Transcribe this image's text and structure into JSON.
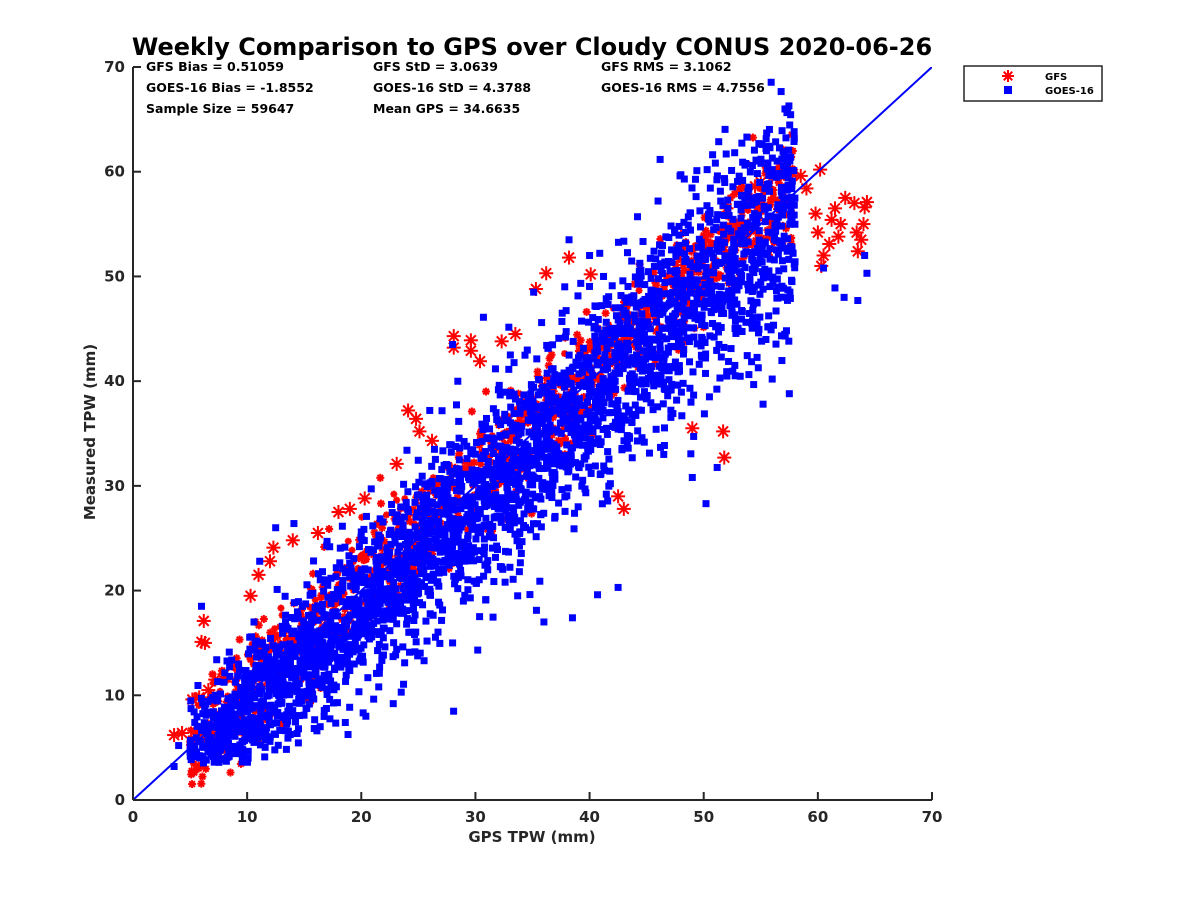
{
  "chart_data": {
    "type": "scatter",
    "title": "Weekly Comparison to GPS over Cloudy CONUS 2020-06-26",
    "xlabel": "GPS TPW (mm)",
    "ylabel": "Measured TPW (mm)",
    "xlim": [
      0,
      70
    ],
    "ylim": [
      0,
      70
    ],
    "xticks": [
      "0",
      "10",
      "20",
      "30",
      "40",
      "50",
      "60",
      "70"
    ],
    "yticks": [
      "0",
      "10",
      "20",
      "30",
      "40",
      "50",
      "60",
      "70"
    ],
    "grid": false,
    "legend_position": "outside-top-right",
    "reference_line": {
      "x": [
        0,
        70
      ],
      "y": [
        0,
        70
      ],
      "color": "#0000ff"
    },
    "stats": [
      [
        "GFS Bias = 0.51059",
        "GFS StD = 3.0639",
        "GFS RMS = 3.1062"
      ],
      [
        "GOES-16 Bias = -1.8552",
        "GOES-16 StD = 4.3788",
        "GOES-16 RMS = 4.7556"
      ],
      [
        "Sample Size = 59647",
        "Mean GPS = 34.6635",
        ""
      ]
    ],
    "series": [
      {
        "name": "GFS",
        "marker": "asterisk",
        "color": "#ff0000",
        "points": [
          [
            3.6,
            6.2
          ],
          [
            4.3,
            6.4
          ],
          [
            5.2,
            9.6
          ],
          [
            5.8,
            9.8
          ],
          [
            6.0,
            15.1
          ],
          [
            6.3,
            15.0
          ],
          [
            6.2,
            17.1
          ],
          [
            6.6,
            10.5
          ],
          [
            7.2,
            11.5
          ],
          [
            8.0,
            12.0
          ],
          [
            10.3,
            19.5
          ],
          [
            11.0,
            21.5
          ],
          [
            12.3,
            24.1
          ],
          [
            12.0,
            22.8
          ],
          [
            14.0,
            24.8
          ],
          [
            16.2,
            25.5
          ],
          [
            18.0,
            27.5
          ],
          [
            19.0,
            27.8
          ],
          [
            20.3,
            28.8
          ],
          [
            23.1,
            32.1
          ],
          [
            24.1,
            37.2
          ],
          [
            24.8,
            36.4
          ],
          [
            25.1,
            35.2
          ],
          [
            26.2,
            34.3
          ],
          [
            28.1,
            44.3
          ],
          [
            28.1,
            43.2
          ],
          [
            29.6,
            43.9
          ],
          [
            29.6,
            42.9
          ],
          [
            30.4,
            41.9
          ],
          [
            32.3,
            43.8
          ],
          [
            33.5,
            44.5
          ],
          [
            35.3,
            48.8
          ],
          [
            36.2,
            50.3
          ],
          [
            38.2,
            51.8
          ],
          [
            40.1,
            50.2
          ],
          [
            42.5,
            29.0
          ],
          [
            43.0,
            27.8
          ],
          [
            49.0,
            35.5
          ],
          [
            51.7,
            35.2
          ],
          [
            51.8,
            32.7
          ],
          [
            52.0,
            56.5
          ],
          [
            53.2,
            58.2
          ],
          [
            54.5,
            58.6
          ],
          [
            55.0,
            59.0
          ],
          [
            56.0,
            59.5
          ],
          [
            57.2,
            60.1
          ],
          [
            57.8,
            59.8
          ],
          [
            58.5,
            59.6
          ],
          [
            59.0,
            58.4
          ],
          [
            59.8,
            56.0
          ],
          [
            60.2,
            60.2
          ],
          [
            60.0,
            54.2
          ],
          [
            60.5,
            52.0
          ],
          [
            60.3,
            51.0
          ],
          [
            61.2,
            55.4
          ],
          [
            61.5,
            56.5
          ],
          [
            61.8,
            53.8
          ],
          [
            62.4,
            57.5
          ],
          [
            63.2,
            57.0
          ],
          [
            63.4,
            54.2
          ],
          [
            63.5,
            52.4
          ],
          [
            63.8,
            53.5
          ],
          [
            64.0,
            55.0
          ],
          [
            64.1,
            56.6
          ],
          [
            64.3,
            57.1
          ],
          [
            62.0,
            55.0
          ],
          [
            61.0,
            53.1
          ]
        ]
      },
      {
        "name": "GOES-16",
        "marker": "square",
        "color": "#0000ff",
        "points": [
          [
            3.6,
            3.2
          ],
          [
            4.0,
            5.2
          ],
          [
            5.0,
            4.6
          ],
          [
            6.0,
            18.5
          ],
          [
            7.0,
            4.6
          ],
          [
            10.6,
            17.0
          ],
          [
            11.1,
            22.8
          ],
          [
            12.5,
            26.0
          ],
          [
            14.1,
            26.4
          ],
          [
            17.0,
            24.7
          ],
          [
            20.0,
            25.6
          ],
          [
            24.0,
            33.4
          ],
          [
            26.0,
            37.2
          ],
          [
            28.0,
            43.5
          ],
          [
            30.7,
            46.1
          ],
          [
            35.1,
            48.5
          ],
          [
            38.2,
            53.5
          ],
          [
            40.0,
            52.0
          ],
          [
            44.2,
            55.7
          ],
          [
            46.0,
            57.2
          ],
          [
            48.3,
            59.3
          ],
          [
            49.4,
            60.1
          ],
          [
            50.3,
            60.2
          ],
          [
            51.2,
            59.6
          ],
          [
            55.5,
            62.0
          ],
          [
            56.0,
            60.2
          ],
          [
            57.5,
            57.5
          ],
          [
            58.0,
            51.4
          ],
          [
            60.5,
            50.8
          ],
          [
            61.5,
            48.9
          ],
          [
            62.3,
            48.0
          ],
          [
            63.5,
            47.7
          ],
          [
            64.1,
            52.0
          ],
          [
            64.3,
            50.3
          ],
          [
            39.0,
            28.0
          ],
          [
            36.0,
            17.0
          ],
          [
            38.5,
            17.4
          ],
          [
            40.7,
            19.6
          ],
          [
            42.5,
            20.3
          ],
          [
            32.6,
            20.8
          ],
          [
            33.7,
            19.5
          ],
          [
            30.9,
            19.1
          ],
          [
            28.0,
            15.0
          ],
          [
            25.5,
            13.3
          ],
          [
            23.5,
            10.3
          ],
          [
            22.8,
            9.2
          ],
          [
            20.4,
            8.0
          ],
          [
            18.6,
            7.4
          ],
          [
            16.4,
            7.0
          ],
          [
            14.5,
            6.8
          ],
          [
            12.0,
            5.6
          ],
          [
            10.6,
            5.5
          ],
          [
            8.3,
            5.0
          ],
          [
            50.5,
            38.5
          ],
          [
            55.2,
            37.8
          ],
          [
            56.0,
            40.2
          ],
          [
            57.5,
            38.8
          ],
          [
            49.0,
            30.8
          ],
          [
            50.2,
            28.3
          ],
          [
            46.5,
            33.0
          ]
        ]
      }
    ]
  }
}
